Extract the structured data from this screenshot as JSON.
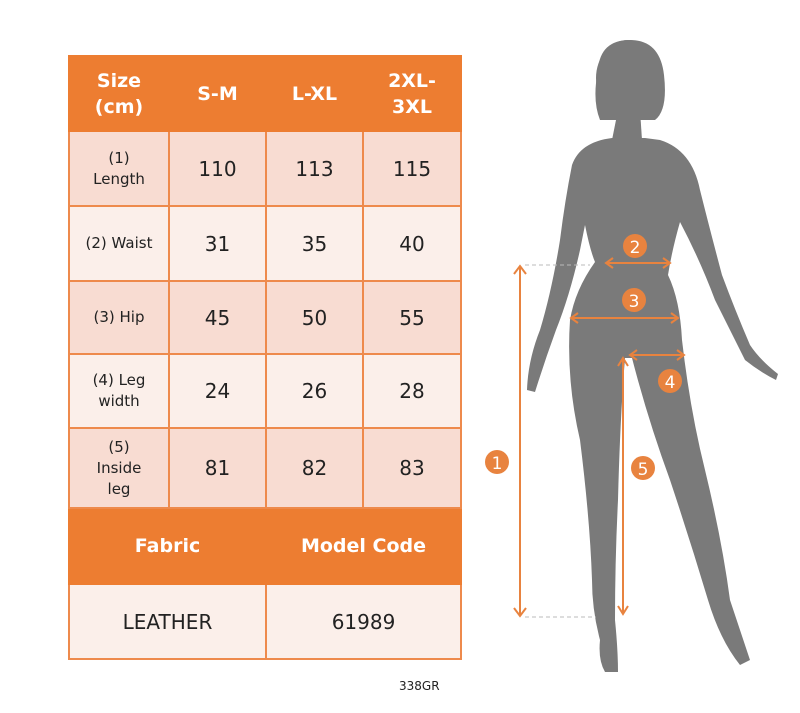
{
  "table": {
    "header": [
      "Size\n(cm)",
      "S-M",
      "L-XL",
      "2XL-\n3XL"
    ],
    "rows": [
      {
        "label": "(1)\nLength",
        "values": [
          "110",
          "113",
          "115"
        ]
      },
      {
        "label": "(2) Waist",
        "values": [
          "31",
          "35",
          "40"
        ]
      },
      {
        "label": "(3) Hip",
        "values": [
          "45",
          "50",
          "55"
        ]
      },
      {
        "label": "(4) Leg\nwidth",
        "values": [
          "24",
          "26",
          "28"
        ]
      },
      {
        "label": "(5)\nInside\nleg",
        "values": [
          "81",
          "82",
          "83"
        ]
      }
    ],
    "footer_headers": [
      "Fabric",
      "Model Code"
    ],
    "footer_values": [
      "LEATHER",
      "61989"
    ]
  },
  "figure": {
    "markers": [
      "1",
      "2",
      "3",
      "4",
      "5"
    ]
  },
  "product_code": "338GR",
  "colors": {
    "accent": "#ed7d31",
    "row_dark": "#f8dcd2",
    "row_light": "#fbefea",
    "silhouette": "#7a7a7a"
  }
}
